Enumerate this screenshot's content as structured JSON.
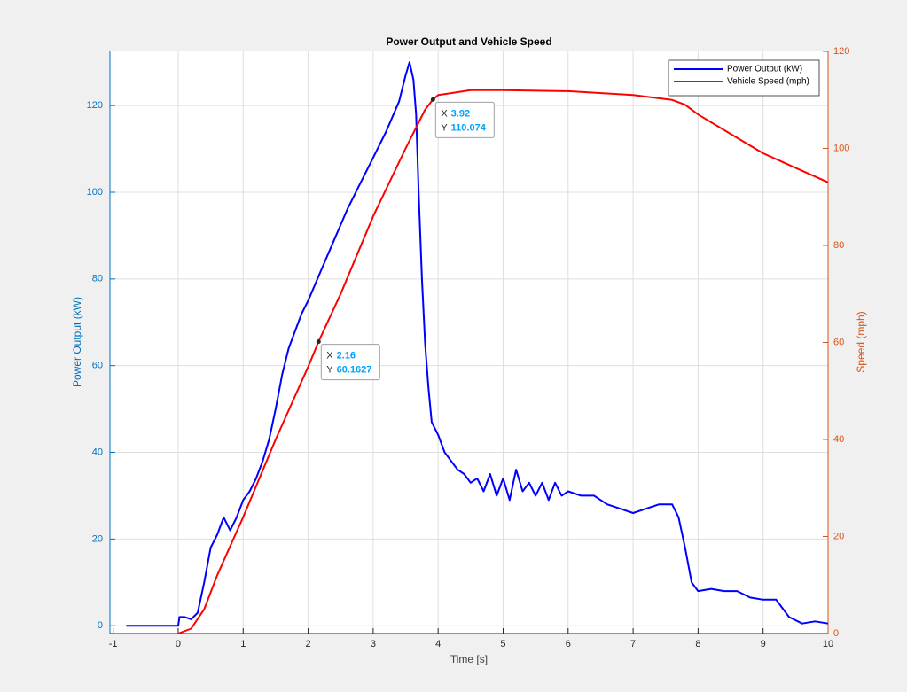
{
  "chart_data": {
    "type": "line",
    "title": "Power Output and Vehicle Speed",
    "xlabel": "Time [s]",
    "ylabel": "Power Output (kW)",
    "y2label": "Speed (mph)",
    "xlim": [
      -1.05,
      10
    ],
    "xticks": [
      -1,
      0,
      1,
      2,
      3,
      4,
      5,
      6,
      7,
      8,
      9,
      10
    ],
    "ylim": [
      -1.8,
      132.5
    ],
    "yticks": [
      0,
      20,
      40,
      60,
      80,
      100,
      120
    ],
    "y2lim": [
      0,
      120
    ],
    "y2ticks": [
      0,
      20,
      40,
      60,
      80,
      100,
      120
    ],
    "grid": true,
    "legend": "upper right",
    "yaxis_color": "#0072bd",
    "y2axis_color": "#d95319",
    "series": [
      {
        "name": "Power Output (kW)",
        "color": "#0000ff",
        "x": [
          -0.8,
          0,
          0.02,
          0.1,
          0.2,
          0.3,
          0.4,
          0.5,
          0.6,
          0.7,
          0.8,
          0.9,
          1.0,
          1.1,
          1.2,
          1.3,
          1.4,
          1.5,
          1.6,
          1.7,
          1.8,
          1.9,
          2.0,
          2.2,
          2.4,
          2.6,
          2.8,
          3.0,
          3.2,
          3.4,
          3.5,
          3.56,
          3.62,
          3.66,
          3.7,
          3.75,
          3.8,
          3.85,
          3.9,
          4.0,
          4.1,
          4.2,
          4.3,
          4.4,
          4.5,
          4.6,
          4.7,
          4.8,
          4.9,
          5.0,
          5.1,
          5.2,
          5.3,
          5.4,
          5.5,
          5.6,
          5.7,
          5.8,
          5.9,
          6.0,
          6.2,
          6.4,
          6.6,
          6.8,
          7.0,
          7.2,
          7.4,
          7.6,
          7.7,
          7.8,
          7.9,
          8.0,
          8.2,
          8.4,
          8.6,
          8.8,
          9.0,
          9.2,
          9.3,
          9.4,
          9.6,
          9.8,
          10
        ],
        "values": [
          0,
          0,
          2,
          2,
          1.5,
          3,
          10,
          18,
          21,
          25,
          22,
          25,
          29,
          31,
          34,
          38,
          43,
          50,
          58,
          64,
          68,
          72,
          75,
          82,
          89,
          96,
          102,
          108,
          114,
          121,
          127,
          130,
          126,
          118,
          100,
          80,
          65,
          55,
          47,
          44,
          40,
          38,
          36,
          35,
          33,
          34,
          31,
          35,
          30,
          34,
          29,
          36,
          31,
          33,
          30,
          33,
          29,
          33,
          30,
          31,
          30,
          30,
          28,
          27,
          26,
          27,
          28,
          28,
          25,
          18,
          10,
          8,
          8.5,
          8,
          8,
          6.5,
          6,
          6,
          4,
          2,
          0.5,
          1,
          0.5
        ]
      },
      {
        "name": "Vehicle Speed (mph)",
        "color": "#ff0000",
        "axis": "y2",
        "x": [
          0,
          0.2,
          0.4,
          0.6,
          0.8,
          1.0,
          1.5,
          2.0,
          2.16,
          2.5,
          3.0,
          3.5,
          3.8,
          3.92,
          4.0,
          4.5,
          5,
          6,
          7,
          7.6,
          7.8,
          8,
          8.5,
          9,
          9.5,
          10
        ],
        "values": [
          0,
          1,
          5,
          12,
          18,
          24,
          40,
          55,
          60.1627,
          70,
          86,
          100,
          108,
          110.074,
          111,
          112,
          112,
          111.8,
          111,
          110,
          109,
          107,
          103,
          99,
          96,
          93
        ]
      }
    ],
    "annotations": [
      {
        "x_label": "X",
        "x": 2.16,
        "y_label": "Y",
        "y": 60.1627
      },
      {
        "x_label": "X",
        "x": 3.92,
        "y_label": "Y",
        "y": 110.074
      }
    ]
  }
}
